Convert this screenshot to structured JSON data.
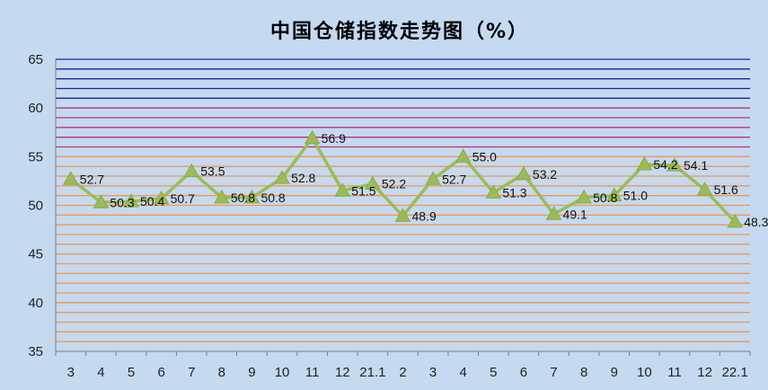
{
  "chart_data": {
    "type": "line",
    "title": "中国仓储指数走势图（%）",
    "xlabel": "",
    "ylabel": "",
    "ylim": [
      35,
      65
    ],
    "yticks": [
      35,
      40,
      45,
      50,
      55,
      60,
      65
    ],
    "categories": [
      "3",
      "4",
      "5",
      "6",
      "7",
      "8",
      "9",
      "10",
      "11",
      "12",
      "21.1",
      "2",
      "3",
      "4",
      "5",
      "6",
      "7",
      "8",
      "9",
      "10",
      "11",
      "12",
      "22.1"
    ],
    "values": [
      52.7,
      50.3,
      50.4,
      50.7,
      53.5,
      50.8,
      50.8,
      52.8,
      56.9,
      51.5,
      52.2,
      48.9,
      52.7,
      55.0,
      51.3,
      53.2,
      49.1,
      50.8,
      51.0,
      54.2,
      54.1,
      51.6,
      48.3
    ],
    "data_labels": [
      "52.7",
      "50.3",
      "50.4",
      "50.7",
      "53.5",
      "50.8",
      "50.8",
      "52.8",
      "56.9",
      "51.5",
      "52.2",
      "48.9",
      "52.7",
      "55.0",
      "51.3",
      "53.2",
      "49.1",
      "50.8",
      "51.0",
      "54.2",
      "54.1",
      "51.6",
      "48.3"
    ],
    "grid": true,
    "legend": "none",
    "colors": {
      "background": "#c5d9f1",
      "line": "#9bbb59",
      "marker": "#9bbb59",
      "grid_low": "#f79646",
      "grid_mid": "#c0306a",
      "grid_high": "#1f1fa0"
    }
  }
}
